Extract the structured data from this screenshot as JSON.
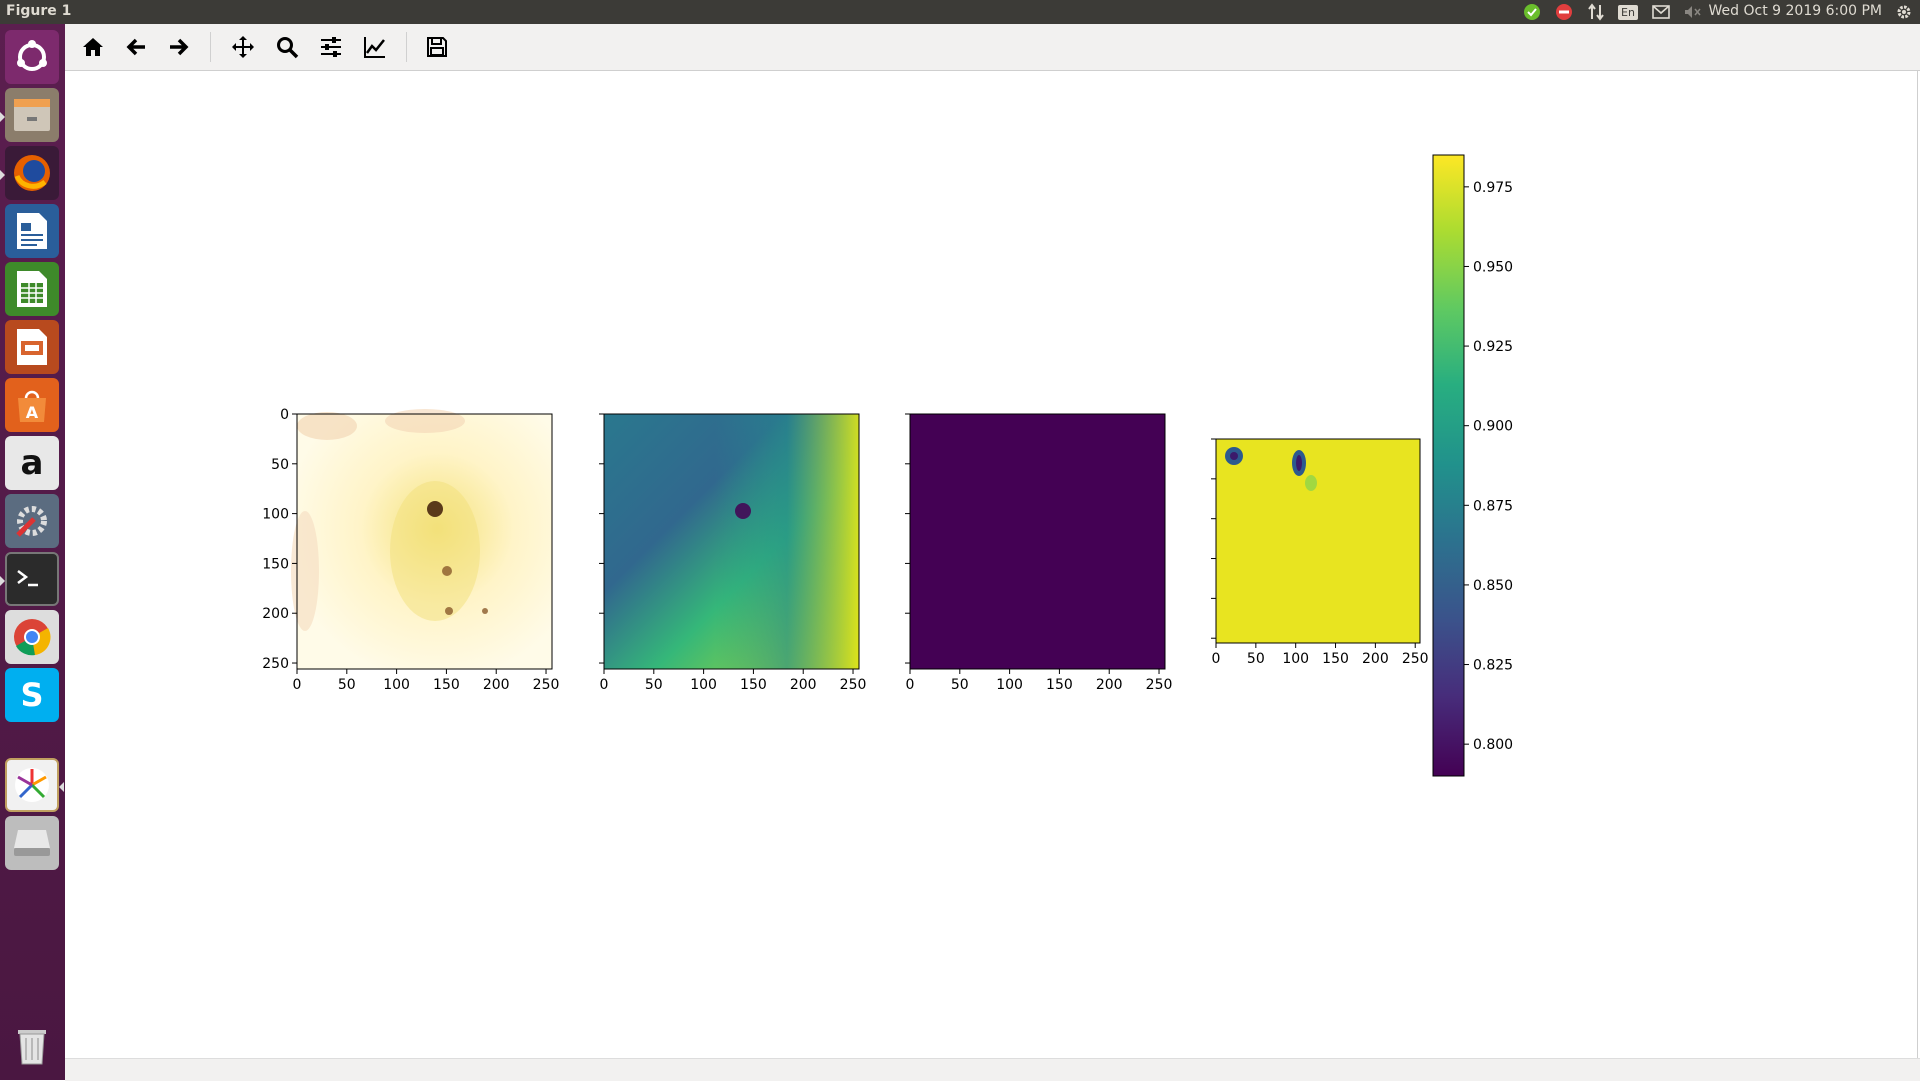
{
  "window": {
    "title": "Figure 1"
  },
  "panel": {
    "clock": "Wed Oct  9 2019  6:00 PM",
    "keyboard_layout": "En"
  },
  "launcher": {
    "items": [
      "ubuntu-dash",
      "files",
      "firefox",
      "libreoffice-writer",
      "libreoffice-calc",
      "libreoffice-impress",
      "software-center",
      "amazon",
      "system-settings",
      "terminal",
      "chrome",
      "skype",
      "app",
      "disk",
      "trash"
    ],
    "amazon_glyph": "a",
    "skype_glyph": "S"
  },
  "toolbar": {
    "tools": [
      "home",
      "back",
      "forward",
      "pan",
      "zoom",
      "configure-subplots",
      "edit-axis",
      "save"
    ]
  },
  "chart_data": [
    {
      "type": "heatmap",
      "description_colormap": "rgb image (cream/yellow/brown)",
      "xticks": [
        "0",
        "50",
        "100",
        "150",
        "200",
        "250"
      ],
      "yticks": [
        "0",
        "50",
        "100",
        "150",
        "200",
        "250"
      ],
      "xlim": [
        0,
        256
      ],
      "ylim": [
        256,
        0
      ]
    },
    {
      "type": "heatmap",
      "colormap": "viridis",
      "xticks": [
        "0",
        "50",
        "100",
        "150",
        "200",
        "250"
      ],
      "yticks": [
        "",
        "",
        "",
        "",
        "",
        ""
      ],
      "xlim": [
        0,
        256
      ],
      "ylim": [
        256,
        0
      ]
    },
    {
      "type": "heatmap",
      "colormap": "viridis",
      "uniform_value": "min",
      "xticks": [
        "0",
        "50",
        "100",
        "150",
        "200",
        "250"
      ],
      "yticks": [
        "",
        "",
        "",
        "",
        "",
        ""
      ],
      "xlim": [
        0,
        256
      ],
      "ylim": [
        256,
        0
      ]
    },
    {
      "type": "heatmap",
      "colormap": "viridis",
      "xticks": [
        "0",
        "50",
        "100",
        "150",
        "200",
        "250"
      ],
      "yticks": [
        "",
        "",
        "",
        "",
        "",
        ""
      ],
      "xlim": [
        0,
        256
      ],
      "ylim": [
        256,
        0
      ],
      "colorbar": {
        "range": [
          0.79,
          0.985
        ],
        "ticks": [
          "0.975",
          "0.950",
          "0.925",
          "0.900",
          "0.875",
          "0.850",
          "0.825",
          "0.800"
        ]
      }
    }
  ],
  "colors": {
    "viridis_low": "#440154",
    "viridis_mid": "#21918c",
    "viridis_high": "#fde725"
  }
}
